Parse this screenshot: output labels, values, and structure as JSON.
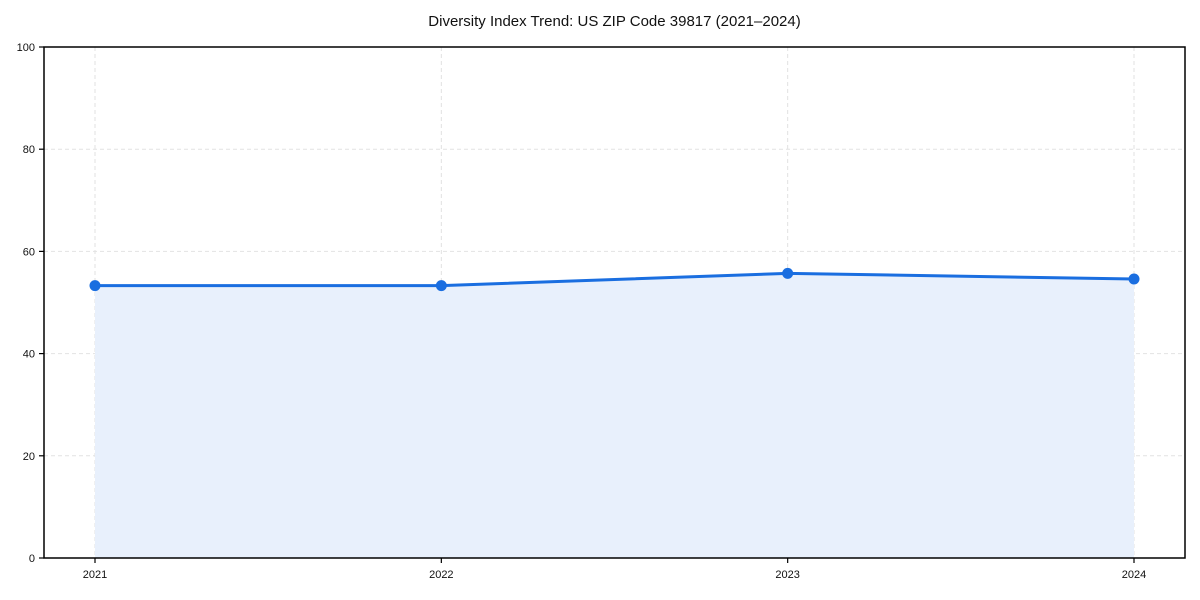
{
  "page": {
    "background": "#ffffff"
  },
  "chart_data": {
    "type": "area",
    "title": "Diversity Index Trend: US ZIP Code 39817 (2021–2024)",
    "categories": [
      "2021",
      "2022",
      "2023",
      "2024"
    ],
    "series": [
      {
        "name": "Diversity Index",
        "values": [
          53.3,
          53.3,
          55.7,
          54.6
        ]
      }
    ],
    "xlabel": "",
    "ylabel": "",
    "ylim": [
      0,
      100
    ],
    "yticks": [
      0,
      20,
      40,
      60,
      80,
      100
    ],
    "grid": true,
    "grid_style": "dashed",
    "legend_position": "none",
    "line_color": "#1a6ee0",
    "fill_color": "#e8f0fc",
    "marker": "circle",
    "border_color": "#000000"
  }
}
